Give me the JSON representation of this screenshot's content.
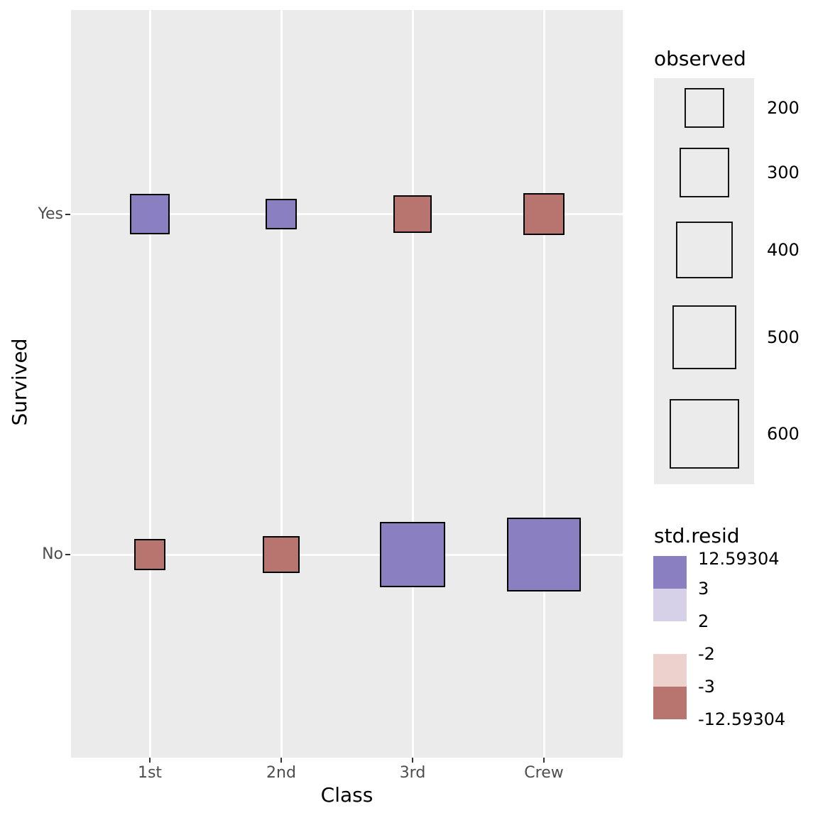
{
  "chart_data": {
    "type": "scatter",
    "subtype": "categorical balloon plot: squares sized by observed count, filled by std.resid bin",
    "xlabel": "Class",
    "ylabel": "Survived",
    "x_categories": [
      "1st",
      "2nd",
      "3rd",
      "Crew"
    ],
    "y_categories": [
      "Yes",
      "No"
    ],
    "cells": [
      {
        "class": "1st",
        "survived": "Yes",
        "observed": 203,
        "resid_bin": "pos_high"
      },
      {
        "class": "2nd",
        "survived": "Yes",
        "observed": 118,
        "resid_bin": "pos_high"
      },
      {
        "class": "3rd",
        "survived": "Yes",
        "observed": 178,
        "resid_bin": "neg_high"
      },
      {
        "class": "Crew",
        "survived": "Yes",
        "observed": 212,
        "resid_bin": "neg_high"
      },
      {
        "class": "1st",
        "survived": "No",
        "observed": 122,
        "resid_bin": "neg_high"
      },
      {
        "class": "2nd",
        "survived": "No",
        "observed": 167,
        "resid_bin": "neg_high"
      },
      {
        "class": "3rd",
        "survived": "No",
        "observed": 528,
        "resid_bin": "pos_high"
      },
      {
        "class": "Crew",
        "survived": "No",
        "observed": 673,
        "resid_bin": "pos_high"
      }
    ],
    "size_legend": {
      "title": "observed",
      "values": [
        200,
        300,
        400,
        500,
        600
      ]
    },
    "fill_legend": {
      "title": "std.resid",
      "breaks": [
        "12.59304",
        "3",
        "2",
        "-2",
        "-3",
        "-12.59304"
      ],
      "bins": [
        {
          "range": "3 to 12.59304",
          "bin": "pos_high"
        },
        {
          "range": "2 to 3",
          "bin": "pos_low"
        },
        {
          "range": "-3 to -2",
          "bin": "neg_low"
        },
        {
          "range": "-12.59304 to -3",
          "bin": "neg_high"
        }
      ]
    },
    "grid": "major white gridlines on gray panel",
    "legend_position": "right"
  },
  "colors": {
    "pos_high": "#8A7FC1",
    "pos_low": "#D6D1E7",
    "neg_low": "#EDD1CC",
    "neg_high": "#B87570",
    "panel_bg": "#EBEBEB",
    "gridline": "#FFFFFF",
    "square_stroke": "#000000",
    "axis_text": "#4D4D4D",
    "title_text": "#000000"
  }
}
